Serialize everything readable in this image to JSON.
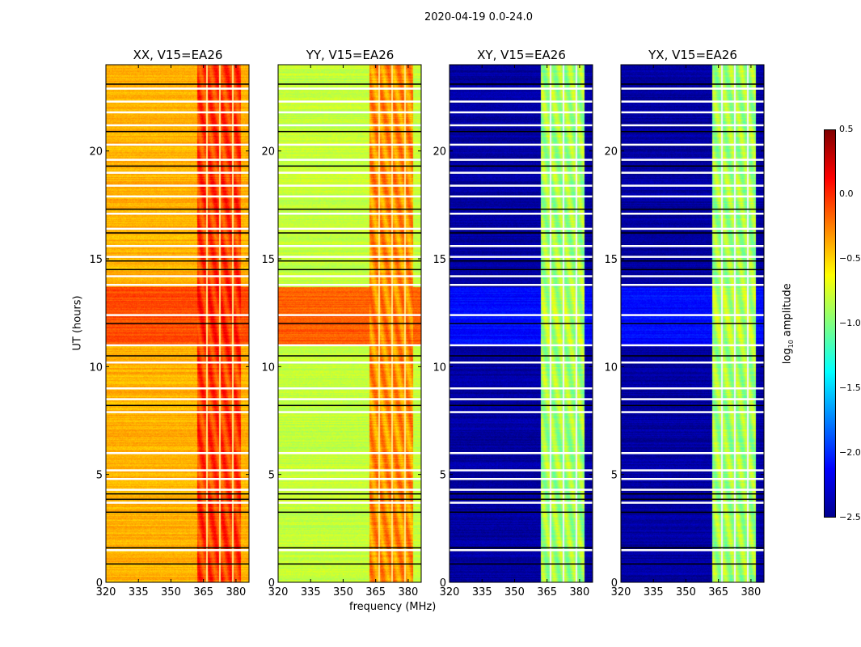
{
  "chart_data": {
    "type": "heatmap",
    "title": "2020-04-19 0.0-24.0",
    "xlabel": "frequency (MHz)",
    "ylabel": "UT (hours)",
    "xlim": [
      320,
      386
    ],
    "ylim": [
      0,
      24
    ],
    "xticks": [
      "320",
      "335",
      "350",
      "365",
      "380"
    ],
    "xtick_values": [
      320,
      335,
      350,
      365,
      380
    ],
    "yticks": [
      "0",
      "5",
      "10",
      "15",
      "20"
    ],
    "ytick_values": [
      0,
      5,
      10,
      15,
      20
    ],
    "colorbar": {
      "label": "log10 amplitude",
      "label_main": "log",
      "label_sub": "10",
      "label_tail": " amplitude",
      "range": [
        -2.5,
        0.5
      ],
      "ticks": [
        "0.5",
        "0.0",
        "−0.5",
        "−1.0",
        "−1.5",
        "−2.0",
        "−2.5"
      ],
      "tick_values": [
        0.5,
        0.0,
        -0.5,
        -1.0,
        -1.5,
        -2.0,
        -2.5
      ],
      "colormap": "jet"
    },
    "band_mhz": [
      362,
      382
    ],
    "band_gaps_mhz": [
      366.3,
      372.3,
      378.3
    ],
    "flagged_hours_white": [
      1.5,
      3.7,
      4.3,
      4.8,
      5.2,
      6.0,
      7.9,
      8.5,
      9.0,
      10.2,
      11.0,
      12.4,
      13.8,
      14.2,
      15.1,
      15.6,
      16.4,
      17.1,
      17.9,
      18.4,
      19.0,
      19.6,
      20.3,
      21.2,
      21.8,
      22.3,
      22.9
    ],
    "flagged_hours_black": [
      0.85,
      1.6,
      3.25,
      3.85,
      4.1,
      8.2,
      10.5,
      12.0,
      14.5,
      14.9,
      16.2,
      17.3,
      19.3,
      20.9,
      23.1
    ],
    "panels": [
      {
        "title": "XX, V15=EA26",
        "off_band": -0.4,
        "in_band": -0.05,
        "bright_hours": [
          11,
          13.7
        ],
        "bright_level": -0.1
      },
      {
        "title": "YY, V15=EA26",
        "off_band": -0.8,
        "in_band": -0.3,
        "bright_hours": [
          11,
          13.7
        ],
        "bright_level": -0.15
      },
      {
        "title": "XY, V15=EA26",
        "off_band": -2.4,
        "in_band": -0.9,
        "bright_hours": [
          11,
          13.7
        ],
        "bright_level": -2.1
      },
      {
        "title": "YX, V15=EA26",
        "off_band": -2.4,
        "in_band": -0.9,
        "bright_hours": [
          11,
          13.7
        ],
        "bright_level": -2.1
      }
    ]
  }
}
